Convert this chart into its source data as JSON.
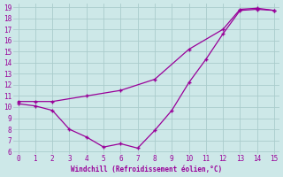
{
  "xlabel": "Windchill (Refroidissement éolien,°C)",
  "background_color": "#cde8e8",
  "line_color": "#990099",
  "line_upper_x": [
    0,
    1,
    2,
    4,
    6,
    8,
    10,
    12,
    13,
    14,
    15
  ],
  "line_upper_y": [
    10.5,
    10.5,
    10.5,
    11.0,
    11.5,
    12.5,
    15.2,
    17.0,
    18.8,
    18.9,
    18.7
  ],
  "line_lower_x": [
    0,
    1,
    2,
    3,
    4,
    5,
    6,
    7,
    8,
    9,
    10,
    11,
    12,
    13,
    14,
    15
  ],
  "line_lower_y": [
    10.3,
    10.1,
    9.7,
    8.0,
    7.3,
    6.4,
    6.7,
    6.3,
    7.9,
    9.7,
    12.2,
    14.3,
    16.6,
    18.7,
    18.8,
    18.7
  ],
  "xlim": [
    0,
    15
  ],
  "ylim": [
    6,
    19
  ],
  "yticks": [
    6,
    7,
    8,
    9,
    10,
    11,
    12,
    13,
    14,
    15,
    16,
    17,
    18,
    19
  ],
  "xticks": [
    0,
    1,
    2,
    3,
    4,
    5,
    6,
    7,
    8,
    9,
    10,
    11,
    12,
    13,
    14,
    15
  ],
  "grid_color": "#aacccc",
  "font_color": "#990099"
}
